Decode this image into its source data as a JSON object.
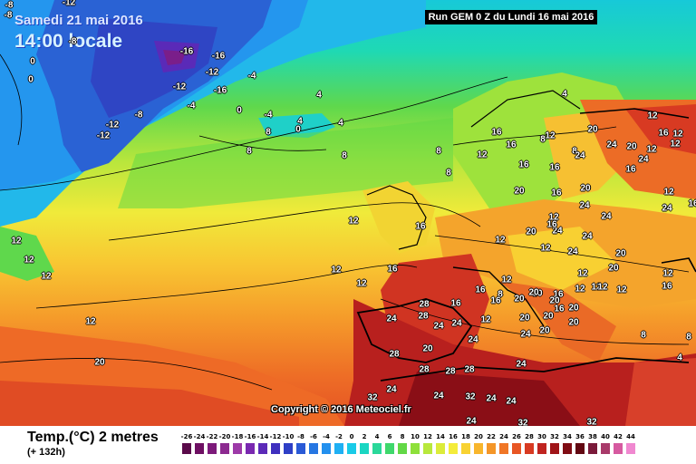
{
  "header": {
    "date_line": "Samedi 21 mai 2016",
    "time_line": "14:00 locale",
    "run_info": "Run GEM 0 Z du Lundi 16 mai 2016"
  },
  "footer": {
    "variable_title": "Temp.(°C) 2 metres",
    "forecast_hours": "(+ 132h)",
    "copyright": "Copyright © 2016 Meteociel.fr"
  },
  "legend": {
    "labels": [
      "-26",
      "-24",
      "-22",
      "-20",
      "-18",
      "-16",
      "-14",
      "-12",
      "-10",
      "-8",
      "-6",
      "-4",
      "-2",
      "0",
      "2",
      "4",
      "6",
      "8",
      "10",
      "12",
      "14",
      "16",
      "18",
      "20",
      "22",
      "24",
      "26",
      "28",
      "30",
      "32",
      "34",
      "36",
      "38",
      "40",
      "42",
      "44"
    ],
    "colors": [
      "#5a0a4a",
      "#6e0f62",
      "#7d1a7a",
      "#8c2a90",
      "#9d3aa8",
      "#7a28b0",
      "#5c2ab8",
      "#3f2fbf",
      "#2e3fc6",
      "#2a5ad6",
      "#2676e2",
      "#2390ee",
      "#1fb0f4",
      "#19cbe8",
      "#1ad6c2",
      "#2ad89a",
      "#3fd86c",
      "#62d846",
      "#8ee03a",
      "#b8e83c",
      "#dcec3a",
      "#f4ec3a",
      "#f8d232",
      "#f8b62c",
      "#f49628",
      "#f07626",
      "#e85624",
      "#d83a22",
      "#c02420",
      "#a01418",
      "#800c14",
      "#620812",
      "#7a1a3a",
      "#a83a6a",
      "#d65aa0",
      "#f088d0"
    ]
  },
  "map_labels": [
    {
      "t": "-12"
    },
    {
      "t": "-8"
    },
    {
      "t": "-8"
    },
    {
      "t": "-16"
    },
    {
      "t": "-16"
    },
    {
      "t": "-12"
    },
    {
      "t": "-12"
    },
    {
      "t": "-16"
    },
    {
      "t": "-4"
    },
    {
      "t": "-4"
    },
    {
      "t": "0"
    },
    {
      "t": "0"
    },
    {
      "t": "-8"
    },
    {
      "t": "-12"
    },
    {
      "t": "-12"
    },
    {
      "t": "-8"
    },
    {
      "t": "0"
    },
    {
      "t": "-4"
    },
    {
      "t": "0"
    },
    {
      "t": "8"
    },
    {
      "t": "4"
    },
    {
      "t": "4"
    },
    {
      "t": "4"
    },
    {
      "t": "8"
    },
    {
      "t": "8"
    },
    {
      "t": "8"
    },
    {
      "t": "8"
    },
    {
      "t": "12"
    },
    {
      "t": "12"
    },
    {
      "t": "12"
    },
    {
      "t": "12"
    },
    {
      "t": "12"
    },
    {
      "t": "16"
    },
    {
      "t": "12"
    },
    {
      "t": "16"
    },
    {
      "t": "12"
    },
    {
      "t": "20"
    },
    {
      "t": "28"
    },
    {
      "t": "28"
    },
    {
      "t": "24"
    },
    {
      "t": "20"
    },
    {
      "t": "28"
    },
    {
      "t": "24"
    },
    {
      "t": "24"
    },
    {
      "t": "16"
    },
    {
      "t": "24"
    },
    {
      "t": "24"
    },
    {
      "t": "24"
    },
    {
      "t": "24"
    },
    {
      "t": "32"
    },
    {
      "t": "28"
    },
    {
      "t": "28"
    },
    {
      "t": "28"
    },
    {
      "t": "24"
    },
    {
      "t": "32"
    },
    {
      "t": "24"
    },
    {
      "t": "32"
    },
    {
      "t": "24"
    },
    {
      "t": "32"
    },
    {
      "t": "24"
    },
    {
      "t": "20"
    },
    {
      "t": "20"
    },
    {
      "t": "20"
    },
    {
      "t": "12"
    },
    {
      "t": "8"
    },
    {
      "t": "12"
    },
    {
      "t": "20"
    },
    {
      "t": "20"
    },
    {
      "t": "16"
    },
    {
      "t": "16"
    },
    {
      "t": "12"
    },
    {
      "t": "20"
    },
    {
      "t": "24"
    },
    {
      "t": "24"
    },
    {
      "t": "24"
    },
    {
      "t": "12"
    },
    {
      "t": "12"
    },
    {
      "t": "16"
    },
    {
      "t": "16"
    },
    {
      "t": "12"
    },
    {
      "t": "20"
    },
    {
      "t": "20"
    },
    {
      "t": "20"
    },
    {
      "t": "16"
    },
    {
      "t": "16"
    },
    {
      "t": "12"
    },
    {
      "t": "20"
    },
    {
      "t": "20"
    },
    {
      "t": "20"
    },
    {
      "t": "12"
    },
    {
      "t": "12"
    },
    {
      "t": "16"
    },
    {
      "t": "12"
    },
    {
      "t": "16"
    },
    {
      "t": "20"
    },
    {
      "t": "16"
    },
    {
      "t": "20"
    },
    {
      "t": "12"
    },
    {
      "t": "24"
    },
    {
      "t": "24"
    },
    {
      "t": "12"
    },
    {
      "t": "8"
    },
    {
      "t": "4"
    },
    {
      "t": "8"
    },
    {
      "t": "4"
    },
    {
      "t": "16"
    },
    {
      "t": "12"
    },
    {
      "t": "16"
    },
    {
      "t": "8"
    },
    {
      "t": "12"
    },
    {
      "t": "8"
    },
    {
      "t": "16"
    },
    {
      "t": "20"
    },
    {
      "t": "12"
    },
    {
      "t": "16"
    },
    {
      "t": "12"
    },
    {
      "t": "12"
    },
    {
      "t": "12"
    },
    {
      "t": "16"
    },
    {
      "t": "24"
    },
    {
      "t": "24"
    },
    {
      "t": "20"
    },
    {
      "t": "24"
    },
    {
      "t": "24"
    }
  ]
}
